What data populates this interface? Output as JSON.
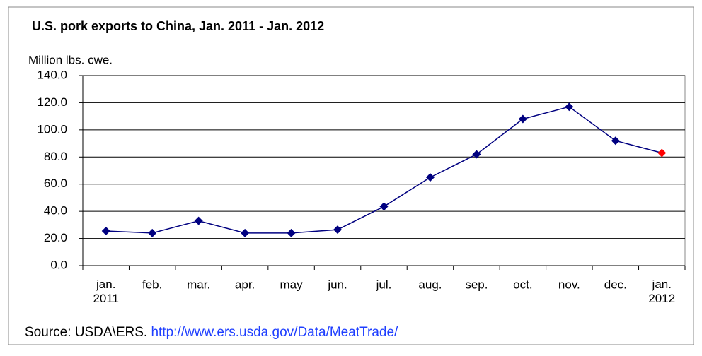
{
  "chart_data": {
    "type": "line",
    "title": "U.S. pork exports to China, Jan. 2011  - Jan. 2012",
    "y_label": "Million lbs. cwe.",
    "categories": [
      "jan.\n2011",
      "feb.",
      "mar.",
      "apr.",
      "may",
      "jun.",
      "jul.",
      "aug.",
      "sep.",
      "oct.",
      "nov.",
      "dec.",
      "jan.\n2012"
    ],
    "series": [
      {
        "name": "U.S. pork exports to China",
        "color": "#000080",
        "values": [
          25.5,
          24,
          33,
          24,
          24,
          26.5,
          43.5,
          65,
          82,
          108,
          117,
          92,
          83
        ]
      }
    ],
    "last_point_color": "#ff0000",
    "ylim": [
      0,
      140
    ],
    "yticks": [
      {
        "value": 0,
        "label": "0.0"
      },
      {
        "value": 20,
        "label": "20.0"
      },
      {
        "value": 40,
        "label": "40.0"
      },
      {
        "value": 60,
        "label": "60.0"
      },
      {
        "value": 80,
        "label": "80.0"
      },
      {
        "value": 100,
        "label": "100.0"
      },
      {
        "value": 120,
        "label": "120.0"
      },
      {
        "value": 140,
        "label": "140.0"
      }
    ],
    "grid": true,
    "source": "Source: USDA\\ERS.",
    "source_url": "http://www.ers.usda.gov/Data/MeatTrade/"
  }
}
